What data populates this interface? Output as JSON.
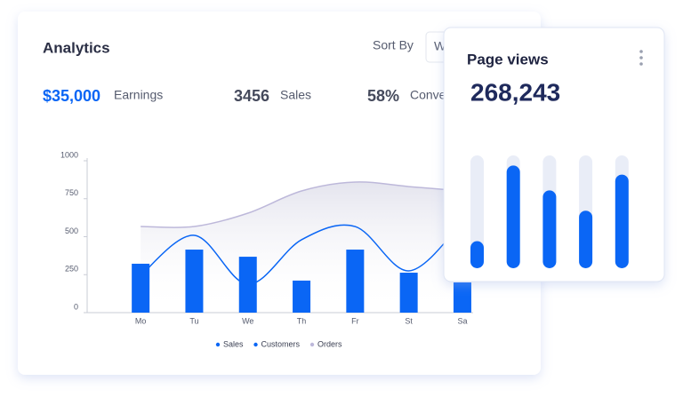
{
  "header": {
    "title": "Analytics",
    "sort_label": "Sort By",
    "sort_value": "W"
  },
  "stats": [
    {
      "value": "$35,000",
      "label": "Earnings"
    },
    {
      "value": "3456",
      "label": "Sales"
    },
    {
      "value": "58%",
      "label": "Conve"
    }
  ],
  "page_views": {
    "title": "Page views",
    "value": "268,243"
  },
  "chart_data": [
    {
      "type": "combo",
      "categories": [
        "Mo",
        "Tu",
        "We",
        "Th",
        "Fr",
        "St",
        "Sa"
      ],
      "series": [
        {
          "name": "Sales",
          "kind": "bar",
          "color": "#0a66f5",
          "values": [
            322,
            415,
            368,
            211,
            415,
            263,
            199
          ]
        },
        {
          "name": "Customers",
          "kind": "line",
          "color": "#0a66f5",
          "values": [
            246,
            509,
            187,
            480,
            567,
            275,
            596
          ]
        },
        {
          "name": "Orders",
          "kind": "area",
          "color": "#bdb8da",
          "values": [
            567,
            567,
            655,
            801,
            860,
            830,
            801
          ]
        }
      ],
      "ylim": [
        0,
        1000
      ],
      "yticks": [
        0,
        250,
        500,
        750,
        1000
      ]
    },
    {
      "type": "bar",
      "categories": [
        null,
        null,
        null,
        null,
        null
      ],
      "values": [
        24,
        91,
        69,
        51,
        83
      ],
      "color": "#0a66f5",
      "track_color": "#e9edf7",
      "ylim": [
        0,
        100
      ]
    }
  ]
}
